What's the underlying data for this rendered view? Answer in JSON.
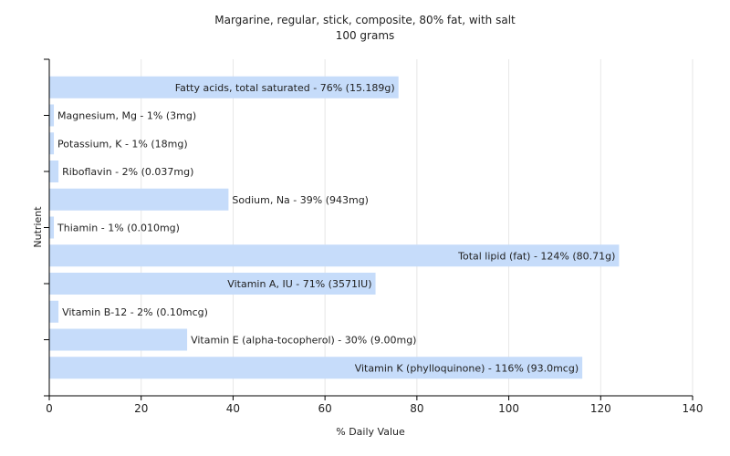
{
  "chart_data": {
    "type": "bar",
    "orientation": "horizontal",
    "title": "Margarine, regular, stick, composite, 80% fat, with salt",
    "subtitle": "100 grams",
    "xlabel": "% Daily Value",
    "ylabel": "Nutrient",
    "xlim": [
      0,
      140
    ],
    "xticks": [
      0,
      20,
      40,
      60,
      80,
      100,
      120,
      140
    ],
    "grid": true,
    "bar_color": "#c6dcfa",
    "categories": [
      "Fatty acids, total saturated",
      "Magnesium, Mg",
      "Potassium, K",
      "Riboflavin",
      "Sodium, Na",
      "Thiamin",
      "Total lipid (fat)",
      "Vitamin A, IU",
      "Vitamin B-12",
      "Vitamin E (alpha-tocopherol)",
      "Vitamin K (phylloquinone)"
    ],
    "values": [
      76,
      1,
      1,
      2,
      39,
      1,
      124,
      71,
      2,
      30,
      116
    ],
    "labels": [
      "Fatty acids, total saturated - 76% (15.189g)",
      "Magnesium, Mg - 1% (3mg)",
      "Potassium, K - 1% (18mg)",
      "Riboflavin - 2% (0.037mg)",
      "Sodium, Na - 39% (943mg)",
      "Thiamin - 1% (0.010mg)",
      "Total lipid (fat) - 124% (80.71g)",
      "Vitamin A, IU - 71% (3571IU)",
      "Vitamin B-12 - 2% (0.10mcg)",
      "Vitamin E (alpha-tocopherol) - 30% (9.00mg)",
      "Vitamin K (phylloquinone) - 116% (93.0mcg)"
    ]
  }
}
